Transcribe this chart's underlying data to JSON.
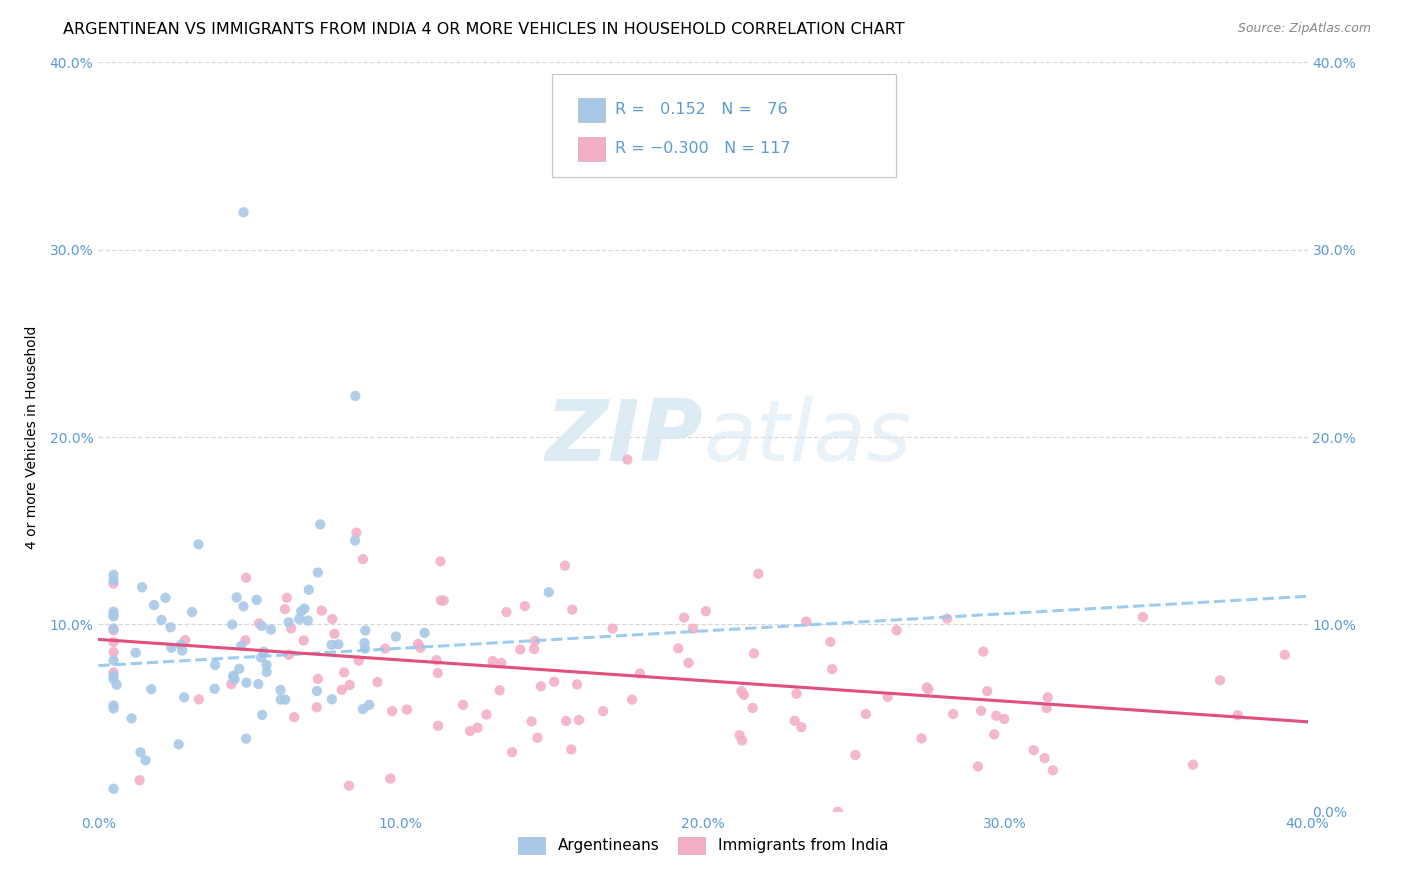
{
  "title": "ARGENTINEAN VS IMMIGRANTS FROM INDIA 4 OR MORE VEHICLES IN HOUSEHOLD CORRELATION CHART",
  "source": "Source: ZipAtlas.com",
  "ylabel": "4 or more Vehicles in Household",
  "xlim": [
    0.0,
    0.4
  ],
  "ylim": [
    0.0,
    0.4
  ],
  "xticks": [
    0.0,
    0.1,
    0.2,
    0.3,
    0.4
  ],
  "yticks": [
    0.0,
    0.1,
    0.2,
    0.3,
    0.4
  ],
  "xticklabels": [
    "0.0%",
    "10.0%",
    "20.0%",
    "30.0%",
    "40.0%"
  ],
  "left_yticklabels": [
    "",
    "10.0%",
    "20.0%",
    "30.0%",
    "40.0%"
  ],
  "right_yticklabels": [
    "0.0%",
    "10.0%",
    "20.0%",
    "30.0%",
    "40.0%"
  ],
  "legend_label1": "Argentineans",
  "legend_label2": "Immigrants from India",
  "R1": 0.152,
  "N1": 76,
  "R2": -0.3,
  "N2": 117,
  "color1": "#a8c8e8",
  "color2": "#f4afc8",
  "trend1_color": "#3a7abf",
  "trend2_color": "#e0507a",
  "background_color": "#ffffff",
  "grid_color": "#d8d8d8",
  "watermark_zip": "ZIP",
  "watermark_atlas": "atlas",
  "title_fontsize": 11.5,
  "axis_label_fontsize": 10,
  "tick_fontsize": 10,
  "tick_color": "#5b9bd5"
}
